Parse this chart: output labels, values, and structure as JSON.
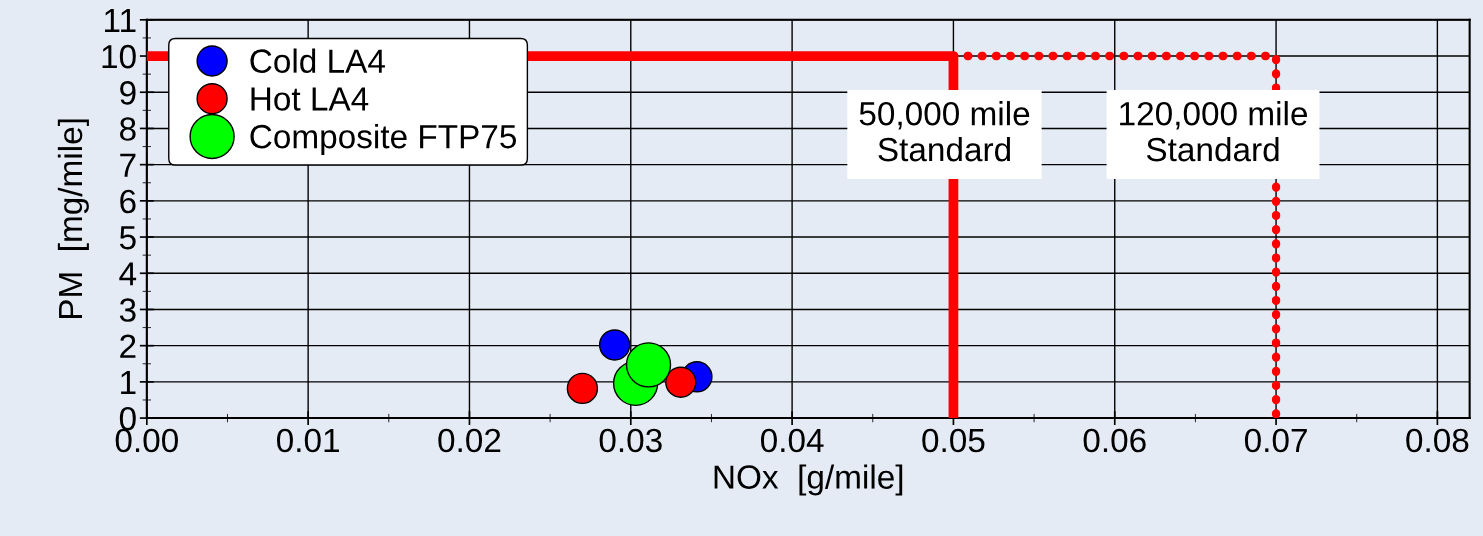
{
  "chart_data": {
    "type": "scatter",
    "xlabel": "NOx  [g/mile]",
    "ylabel": "PM  [mg/mile]",
    "xlim": [
      0,
      0.082
    ],
    "xticks": [
      {
        "value": 0,
        "label": "0.00"
      },
      0.01,
      0.02,
      0.03,
      0.04,
      0.05,
      0.06,
      0.07,
      0.08
    ],
    "ylim": [
      0,
      11
    ],
    "yticks": [
      0,
      1,
      2,
      3,
      4,
      5,
      6,
      7,
      8,
      9,
      10,
      11
    ],
    "grid": true,
    "legend": "top left",
    "marker": "circle",
    "series": [
      {
        "name": "Cold LA4",
        "color": "#0000ff",
        "x": [
          0.029,
          0.0341
        ],
        "values": [
          2.02,
          1.14
        ]
      },
      {
        "name": "Hot LA4",
        "color": "#ff0000",
        "x": [
          0.027,
          0.0331
        ],
        "values": [
          0.82,
          0.99
        ]
      },
      {
        "name": "Composite FTP75",
        "color": "#00ff00",
        "x": [
          0.0303,
          0.0311
        ],
        "values": [
          0.96,
          1.47
        ]
      },
      {
        "type": "line",
        "color": "#ff0000",
        "line_style": "solid",
        "x": [
          0,
          0.05,
          0.05
        ],
        "values": [
          10,
          10,
          0
        ],
        "marker": "none"
      },
      {
        "type": "line",
        "color": "#ff0000",
        "line_style": "dotted",
        "marker": "none",
        "x": [
          0.05,
          0.07,
          0.07
        ],
        "values": [
          10,
          10,
          0
        ]
      }
    ],
    "annotations": [
      "50,000 mile\nStandard",
      "120,000 mile\nStandard"
    ]
  }
}
